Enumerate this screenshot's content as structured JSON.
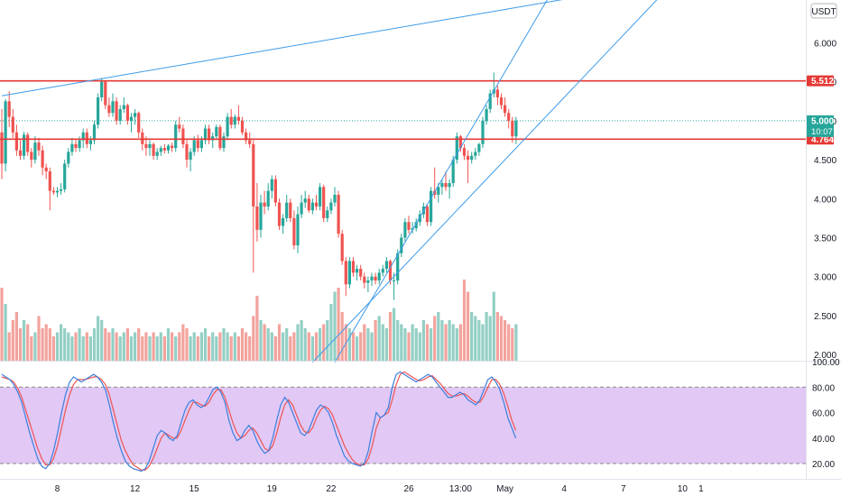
{
  "chart_data": {
    "type": "candlestick",
    "currency": "USDT",
    "price_axis": {
      "range": [
        1.92,
        6.55
      ],
      "ticks": [
        6.0,
        5.5,
        5.0,
        4.5,
        4.0,
        3.5,
        3.0,
        2.5,
        2.0
      ],
      "tick_labels": [
        "6.000",
        "5.500",
        "5.000",
        "4.500",
        "4.000",
        "3.500",
        "3.000",
        "2.500",
        "2.000"
      ]
    },
    "x_axis": {
      "labels": [
        {
          "label": "8",
          "bar": 15
        },
        {
          "label": "12",
          "bar": 36
        },
        {
          "label": "15",
          "bar": 52
        },
        {
          "label": "19",
          "bar": 73
        },
        {
          "label": "22",
          "bar": 89
        },
        {
          "label": "26",
          "bar": 110
        },
        {
          "label": "13:00",
          "bar": 124
        },
        {
          "label": "May",
          "bar": 136
        },
        {
          "label": "4",
          "bar": 152
        },
        {
          "label": "7",
          "bar": 168
        },
        {
          "label": "10",
          "bar": 184
        },
        {
          "label": "1",
          "bar": 189
        }
      ],
      "bar_count": 190
    },
    "horizontal_lines": [
      {
        "price": 5.512,
        "label": "5.512",
        "color": "#e53935"
      },
      {
        "price": 4.764,
        "label": "4.764",
        "color": "#e53935"
      }
    ],
    "current_price": {
      "price": 5.0,
      "label": "5.000",
      "countdown": "10:07",
      "color": "#26a69a"
    },
    "trendlines": [
      {
        "from": {
          "bar": 0,
          "price": 5.32
        },
        "to": {
          "bar": 157,
          "price": 6.6
        }
      },
      {
        "from": {
          "bar": 90,
          "price": 1.9
        },
        "to": {
          "bar": 148,
          "price": 6.6
        }
      },
      {
        "from": {
          "bar": 84,
          "price": 1.9
        },
        "to": {
          "bar": 178,
          "price": 6.6
        }
      }
    ],
    "candles": [
      {
        "o": 4.85,
        "h": 5.15,
        "l": 4.25,
        "c": 4.45
      },
      {
        "o": 4.45,
        "h": 5.28,
        "l": 4.35,
        "c": 5.25
      },
      {
        "o": 5.25,
        "h": 5.38,
        "l": 4.92,
        "c": 5.05
      },
      {
        "o": 5.05,
        "h": 5.15,
        "l": 4.78,
        "c": 4.85
      },
      {
        "o": 4.85,
        "h": 4.95,
        "l": 4.55,
        "c": 4.62
      },
      {
        "o": 4.62,
        "h": 4.75,
        "l": 4.5,
        "c": 4.55
      },
      {
        "o": 4.55,
        "h": 4.86,
        "l": 4.5,
        "c": 4.82
      },
      {
        "o": 4.82,
        "h": 4.85,
        "l": 4.55,
        "c": 4.6
      },
      {
        "o": 4.6,
        "h": 4.65,
        "l": 4.4,
        "c": 4.5
      },
      {
        "o": 4.5,
        "h": 4.8,
        "l": 4.45,
        "c": 4.72
      },
      {
        "o": 4.72,
        "h": 4.78,
        "l": 4.55,
        "c": 4.62
      },
      {
        "o": 4.62,
        "h": 4.68,
        "l": 4.3,
        "c": 4.4
      },
      {
        "o": 4.4,
        "h": 4.45,
        "l": 4.25,
        "c": 4.35
      },
      {
        "o": 4.35,
        "h": 4.4,
        "l": 3.85,
        "c": 4.1
      },
      {
        "o": 4.1,
        "h": 4.15,
        "l": 4.05,
        "c": 4.08
      },
      {
        "o": 4.08,
        "h": 4.15,
        "l": 4.02,
        "c": 4.1
      },
      {
        "o": 4.1,
        "h": 4.2,
        "l": 4.05,
        "c": 4.12
      },
      {
        "o": 4.12,
        "h": 4.5,
        "l": 4.08,
        "c": 4.45
      },
      {
        "o": 4.45,
        "h": 4.65,
        "l": 4.4,
        "c": 4.6
      },
      {
        "o": 4.6,
        "h": 4.78,
        "l": 4.55,
        "c": 4.7
      },
      {
        "o": 4.7,
        "h": 4.75,
        "l": 4.6,
        "c": 4.65
      },
      {
        "o": 4.65,
        "h": 4.8,
        "l": 4.6,
        "c": 4.75
      },
      {
        "o": 4.75,
        "h": 4.9,
        "l": 4.65,
        "c": 4.85
      },
      {
        "o": 4.85,
        "h": 4.9,
        "l": 4.65,
        "c": 4.7
      },
      {
        "o": 4.7,
        "h": 4.8,
        "l": 4.62,
        "c": 4.75
      },
      {
        "o": 4.75,
        "h": 5.0,
        "l": 4.7,
        "c": 4.95
      },
      {
        "o": 4.95,
        "h": 5.35,
        "l": 4.9,
        "c": 5.3
      },
      {
        "o": 5.3,
        "h": 5.55,
        "l": 5.25,
        "c": 5.5
      },
      {
        "o": 5.5,
        "h": 5.52,
        "l": 5.15,
        "c": 5.2
      },
      {
        "o": 5.2,
        "h": 5.3,
        "l": 5.05,
        "c": 5.1
      },
      {
        "o": 5.1,
        "h": 5.35,
        "l": 5.05,
        "c": 5.25
      },
      {
        "o": 5.25,
        "h": 5.3,
        "l": 4.95,
        "c": 5.0
      },
      {
        "o": 5.0,
        "h": 5.2,
        "l": 4.95,
        "c": 5.15
      },
      {
        "o": 5.15,
        "h": 5.3,
        "l": 5.1,
        "c": 5.2
      },
      {
        "o": 5.2,
        "h": 5.22,
        "l": 4.95,
        "c": 5.0
      },
      {
        "o": 5.0,
        "h": 5.1,
        "l": 4.85,
        "c": 5.05
      },
      {
        "o": 5.05,
        "h": 5.15,
        "l": 4.95,
        "c": 5.1
      },
      {
        "o": 5.1,
        "h": 5.12,
        "l": 4.78,
        "c": 4.85
      },
      {
        "o": 4.85,
        "h": 4.9,
        "l": 4.62,
        "c": 4.7
      },
      {
        "o": 4.7,
        "h": 4.8,
        "l": 4.55,
        "c": 4.65
      },
      {
        "o": 4.65,
        "h": 4.75,
        "l": 4.55,
        "c": 4.7
      },
      {
        "o": 4.7,
        "h": 4.72,
        "l": 4.5,
        "c": 4.55
      },
      {
        "o": 4.55,
        "h": 4.65,
        "l": 4.5,
        "c": 4.6
      },
      {
        "o": 4.6,
        "h": 4.68,
        "l": 4.55,
        "c": 4.65
      },
      {
        "o": 4.65,
        "h": 4.7,
        "l": 4.58,
        "c": 4.62
      },
      {
        "o": 4.62,
        "h": 4.7,
        "l": 4.58,
        "c": 4.68
      },
      {
        "o": 4.68,
        "h": 4.72,
        "l": 4.6,
        "c": 4.65
      },
      {
        "o": 4.65,
        "h": 5.0,
        "l": 4.6,
        "c": 4.95
      },
      {
        "o": 4.95,
        "h": 5.05,
        "l": 4.85,
        "c": 4.9
      },
      {
        "o": 4.9,
        "h": 4.95,
        "l": 4.65,
        "c": 4.7
      },
      {
        "o": 4.7,
        "h": 4.75,
        "l": 4.4,
        "c": 4.5
      },
      {
        "o": 4.5,
        "h": 4.65,
        "l": 4.35,
        "c": 4.6
      },
      {
        "o": 4.6,
        "h": 4.8,
        "l": 4.55,
        "c": 4.75
      },
      {
        "o": 4.75,
        "h": 4.82,
        "l": 4.6,
        "c": 4.65
      },
      {
        "o": 4.65,
        "h": 4.8,
        "l": 4.6,
        "c": 4.75
      },
      {
        "o": 4.75,
        "h": 4.95,
        "l": 4.7,
        "c": 4.9
      },
      {
        "o": 4.9,
        "h": 4.95,
        "l": 4.7,
        "c": 4.75
      },
      {
        "o": 4.75,
        "h": 4.85,
        "l": 4.65,
        "c": 4.8
      },
      {
        "o": 4.8,
        "h": 4.95,
        "l": 4.75,
        "c": 4.92
      },
      {
        "o": 4.92,
        "h": 4.95,
        "l": 4.62,
        "c": 4.65
      },
      {
        "o": 4.65,
        "h": 4.85,
        "l": 4.6,
        "c": 4.8
      },
      {
        "o": 4.8,
        "h": 5.1,
        "l": 4.75,
        "c": 5.05
      },
      {
        "o": 5.05,
        "h": 5.15,
        "l": 4.9,
        "c": 4.95
      },
      {
        "o": 4.95,
        "h": 5.08,
        "l": 4.9,
        "c": 5.05
      },
      {
        "o": 5.05,
        "h": 5.2,
        "l": 4.95,
        "c": 5.0
      },
      {
        "o": 5.0,
        "h": 5.05,
        "l": 4.82,
        "c": 4.85
      },
      {
        "o": 4.85,
        "h": 4.9,
        "l": 4.7,
        "c": 4.75
      },
      {
        "o": 4.75,
        "h": 4.85,
        "l": 4.65,
        "c": 4.7
      },
      {
        "o": 4.7,
        "h": 4.75,
        "l": 3.05,
        "c": 3.9
      },
      {
        "o": 3.9,
        "h": 4.2,
        "l": 3.45,
        "c": 3.6
      },
      {
        "o": 3.6,
        "h": 4.05,
        "l": 3.5,
        "c": 3.95
      },
      {
        "o": 3.95,
        "h": 4.1,
        "l": 3.8,
        "c": 3.9
      },
      {
        "o": 3.9,
        "h": 4.2,
        "l": 3.85,
        "c": 4.1
      },
      {
        "o": 4.1,
        "h": 4.3,
        "l": 4.0,
        "c": 4.25
      },
      {
        "o": 4.25,
        "h": 4.3,
        "l": 3.9,
        "c": 3.95
      },
      {
        "o": 3.95,
        "h": 4.0,
        "l": 3.6,
        "c": 3.65
      },
      {
        "o": 3.65,
        "h": 3.8,
        "l": 3.55,
        "c": 3.75
      },
      {
        "o": 3.75,
        "h": 4.05,
        "l": 3.7,
        "c": 3.95
      },
      {
        "o": 3.95,
        "h": 4.0,
        "l": 3.7,
        "c": 3.75
      },
      {
        "o": 3.75,
        "h": 3.85,
        "l": 3.35,
        "c": 3.4
      },
      {
        "o": 3.4,
        "h": 3.9,
        "l": 3.3,
        "c": 3.8
      },
      {
        "o": 3.8,
        "h": 4.05,
        "l": 3.75,
        "c": 3.95
      },
      {
        "o": 3.95,
        "h": 4.1,
        "l": 3.88,
        "c": 4.0
      },
      {
        "o": 4.0,
        "h": 4.05,
        "l": 3.82,
        "c": 3.85
      },
      {
        "o": 3.85,
        "h": 4.0,
        "l": 3.8,
        "c": 3.95
      },
      {
        "o": 3.95,
        "h": 4.05,
        "l": 3.85,
        "c": 3.9
      },
      {
        "o": 3.9,
        "h": 4.2,
        "l": 3.85,
        "c": 4.15
      },
      {
        "o": 4.15,
        "h": 4.18,
        "l": 3.7,
        "c": 3.75
      },
      {
        "o": 3.75,
        "h": 3.9,
        "l": 3.7,
        "c": 3.85
      },
      {
        "o": 3.85,
        "h": 4.0,
        "l": 3.8,
        "c": 3.95
      },
      {
        "o": 3.95,
        "h": 4.15,
        "l": 3.9,
        "c": 4.05
      },
      {
        "o": 4.05,
        "h": 4.1,
        "l": 3.5,
        "c": 3.55
      },
      {
        "o": 3.55,
        "h": 3.6,
        "l": 3.15,
        "c": 3.2
      },
      {
        "o": 3.2,
        "h": 3.25,
        "l": 2.75,
        "c": 2.9
      },
      {
        "o": 2.9,
        "h": 3.25,
        "l": 2.85,
        "c": 3.2
      },
      {
        "o": 3.2,
        "h": 3.25,
        "l": 3.0,
        "c": 3.05
      },
      {
        "o": 3.05,
        "h": 3.15,
        "l": 2.95,
        "c": 3.1
      },
      {
        "o": 3.1,
        "h": 3.15,
        "l": 2.95,
        "c": 3.0
      },
      {
        "o": 3.0,
        "h": 3.05,
        "l": 2.85,
        "c": 2.92
      },
      {
        "o": 2.92,
        "h": 3.0,
        "l": 2.8,
        "c": 2.95
      },
      {
        "o": 2.95,
        "h": 3.05,
        "l": 2.88,
        "c": 3.0
      },
      {
        "o": 3.0,
        "h": 3.05,
        "l": 2.9,
        "c": 2.95
      },
      {
        "o": 2.95,
        "h": 3.1,
        "l": 2.9,
        "c": 3.05
      },
      {
        "o": 3.05,
        "h": 3.15,
        "l": 3.0,
        "c": 3.1
      },
      {
        "o": 3.1,
        "h": 3.25,
        "l": 3.05,
        "c": 3.2
      },
      {
        "o": 3.2,
        "h": 3.22,
        "l": 2.9,
        "c": 2.95
      },
      {
        "o": 2.95,
        "h": 3.05,
        "l": 2.7,
        "c": 2.95
      },
      {
        "o": 2.95,
        "h": 3.35,
        "l": 2.9,
        "c": 3.3
      },
      {
        "o": 3.3,
        "h": 3.55,
        "l": 3.25,
        "c": 3.5
      },
      {
        "o": 3.5,
        "h": 3.75,
        "l": 3.45,
        "c": 3.7
      },
      {
        "o": 3.7,
        "h": 3.78,
        "l": 3.55,
        "c": 3.6
      },
      {
        "o": 3.6,
        "h": 3.7,
        "l": 3.55,
        "c": 3.62
      },
      {
        "o": 3.62,
        "h": 3.75,
        "l": 3.58,
        "c": 3.7
      },
      {
        "o": 3.7,
        "h": 3.85,
        "l": 3.65,
        "c": 3.8
      },
      {
        "o": 3.8,
        "h": 3.95,
        "l": 3.75,
        "c": 3.9
      },
      {
        "o": 3.9,
        "h": 3.92,
        "l": 3.65,
        "c": 3.7
      },
      {
        "o": 3.7,
        "h": 4.15,
        "l": 3.65,
        "c": 4.1
      },
      {
        "o": 4.1,
        "h": 4.4,
        "l": 4.0,
        "c": 4.05
      },
      {
        "o": 4.05,
        "h": 4.2,
        "l": 3.95,
        "c": 4.15
      },
      {
        "o": 4.15,
        "h": 4.25,
        "l": 4.05,
        "c": 4.2
      },
      {
        "o": 4.2,
        "h": 4.35,
        "l": 4.1,
        "c": 4.15
      },
      {
        "o": 4.15,
        "h": 4.25,
        "l": 4.0,
        "c": 4.2
      },
      {
        "o": 4.2,
        "h": 4.55,
        "l": 4.15,
        "c": 4.5
      },
      {
        "o": 4.5,
        "h": 4.85,
        "l": 4.45,
        "c": 4.8
      },
      {
        "o": 4.8,
        "h": 4.82,
        "l": 4.6,
        "c": 4.65
      },
      {
        "o": 4.65,
        "h": 4.7,
        "l": 4.5,
        "c": 4.55
      },
      {
        "o": 4.55,
        "h": 4.62,
        "l": 4.2,
        "c": 4.5
      },
      {
        "o": 4.5,
        "h": 4.6,
        "l": 4.45,
        "c": 4.55
      },
      {
        "o": 4.55,
        "h": 4.65,
        "l": 4.5,
        "c": 4.6
      },
      {
        "o": 4.6,
        "h": 4.72,
        "l": 4.55,
        "c": 4.7
      },
      {
        "o": 4.7,
        "h": 5.05,
        "l": 4.65,
        "c": 5.0
      },
      {
        "o": 5.0,
        "h": 5.2,
        "l": 4.95,
        "c": 5.15
      },
      {
        "o": 5.15,
        "h": 5.4,
        "l": 5.1,
        "c": 5.35
      },
      {
        "o": 5.35,
        "h": 5.62,
        "l": 5.3,
        "c": 5.4
      },
      {
        "o": 5.4,
        "h": 5.45,
        "l": 5.2,
        "c": 5.3
      },
      {
        "o": 5.3,
        "h": 5.35,
        "l": 5.15,
        "c": 5.2
      },
      {
        "o": 5.2,
        "h": 5.3,
        "l": 5.05,
        "c": 5.1
      },
      {
        "o": 5.1,
        "h": 5.15,
        "l": 4.9,
        "c": 5.0
      },
      {
        "o": 5.0,
        "h": 5.05,
        "l": 4.72,
        "c": 4.8
      },
      {
        "o": 4.8,
        "h": 5.05,
        "l": 4.7,
        "c": 5.0
      }
    ],
    "volume": [
      0.9,
      0.7,
      0.35,
      0.5,
      0.6,
      0.4,
      0.5,
      0.45,
      0.3,
      0.35,
      0.55,
      0.4,
      0.45,
      0.4,
      0.3,
      0.35,
      0.45,
      0.4,
      0.35,
      0.3,
      0.35,
      0.4,
      0.3,
      0.35,
      0.3,
      0.4,
      0.55,
      0.5,
      0.4,
      0.35,
      0.4,
      0.35,
      0.3,
      0.35,
      0.4,
      0.3,
      0.35,
      0.4,
      0.3,
      0.35,
      0.3,
      0.35,
      0.3,
      0.35,
      0.3,
      0.4,
      0.35,
      0.3,
      0.35,
      0.45,
      0.4,
      0.3,
      0.35,
      0.3,
      0.35,
      0.4,
      0.3,
      0.35,
      0.3,
      0.35,
      0.4,
      0.35,
      0.3,
      0.35,
      0.3,
      0.4,
      0.35,
      0.3,
      0.55,
      0.8,
      0.5,
      0.45,
      0.4,
      0.35,
      0.3,
      0.45,
      0.35,
      0.4,
      0.3,
      0.35,
      0.45,
      0.5,
      0.4,
      0.35,
      0.3,
      0.35,
      0.4,
      0.45,
      0.5,
      0.7,
      0.85,
      0.9,
      0.6,
      0.45,
      0.4,
      0.35,
      0.3,
      0.35,
      0.45,
      0.4,
      0.35,
      0.5,
      0.55,
      0.45,
      0.4,
      0.6,
      0.65,
      0.5,
      0.45,
      0.4,
      0.35,
      0.45,
      0.4,
      0.35,
      0.5,
      0.45,
      0.4,
      0.55,
      0.6,
      0.5,
      0.45,
      0.5,
      0.45,
      0.4,
      0.45,
      1.0,
      0.85,
      0.6,
      0.55,
      0.5,
      0.45,
      0.6,
      0.55,
      0.85,
      0.6,
      0.55,
      0.5,
      0.45,
      0.4,
      0.45
    ],
    "stoch_axis": {
      "range": [
        8,
        100
      ],
      "ticks": [
        100,
        80,
        60,
        40,
        20
      ],
      "tick_labels": [
        "100.00",
        "80.00",
        "60.00",
        "40.00",
        "20.00"
      ],
      "band": [
        20,
        80
      ]
    },
    "stoch_k": [
      90,
      88,
      86,
      82,
      76,
      68,
      56,
      44,
      34,
      24,
      18,
      16,
      20,
      30,
      44,
      60,
      74,
      84,
      88,
      86,
      84,
      86,
      88,
      90,
      88,
      84,
      78,
      66,
      52,
      40,
      30,
      22,
      18,
      16,
      15,
      14,
      16,
      22,
      32,
      42,
      46,
      44,
      40,
      38,
      42,
      52,
      62,
      68,
      70,
      66,
      64,
      66,
      72,
      78,
      80,
      76,
      68,
      54,
      44,
      38,
      40,
      46,
      50,
      46,
      38,
      32,
      28,
      30,
      40,
      54,
      66,
      72,
      68,
      60,
      52,
      44,
      42,
      46,
      54,
      62,
      66,
      64,
      60,
      52,
      42,
      34,
      26,
      22,
      20,
      19,
      18,
      20,
      30,
      46,
      60,
      56,
      58,
      64,
      80,
      90,
      92,
      90,
      88,
      86,
      84,
      86,
      88,
      90,
      88,
      84,
      80,
      76,
      72,
      72,
      74,
      76,
      74,
      70,
      68,
      66,
      70,
      78,
      86,
      88,
      84,
      78,
      68,
      56,
      48,
      40
    ],
    "stoch_d": [
      88,
      87,
      86,
      84,
      79,
      72,
      62,
      52,
      42,
      32,
      24,
      19,
      19,
      24,
      34,
      48,
      62,
      74,
      82,
      86,
      86,
      86,
      87,
      88,
      88,
      86,
      82,
      74,
      62,
      50,
      38,
      30,
      24,
      19,
      17,
      15,
      15,
      18,
      24,
      32,
      40,
      44,
      42,
      40,
      40,
      46,
      54,
      62,
      68,
      68,
      66,
      65,
      68,
      74,
      78,
      78,
      72,
      62,
      52,
      44,
      40,
      42,
      46,
      48,
      44,
      38,
      32,
      30,
      34,
      44,
      56,
      66,
      70,
      66,
      58,
      50,
      45,
      44,
      48,
      56,
      62,
      65,
      63,
      58,
      50,
      42,
      34,
      28,
      23,
      20,
      19,
      19,
      24,
      34,
      48,
      56,
      58,
      60,
      70,
      82,
      90,
      92,
      90,
      88,
      86,
      85,
      86,
      88,
      89,
      86,
      83,
      79,
      75,
      73,
      73,
      74,
      75,
      73,
      70,
      68,
      68,
      73,
      80,
      86,
      86,
      82,
      75,
      65,
      54,
      46
    ]
  },
  "colors": {
    "up": "#26a69a",
    "down": "#ef5350",
    "up_volume": "#93cfc4",
    "down_volume": "#f3a39d",
    "trendline": "#3d9be9",
    "stoch_band": "#e1c8f5",
    "stoch_k": "#3d7fdd",
    "stoch_d": "#ef5350"
  }
}
